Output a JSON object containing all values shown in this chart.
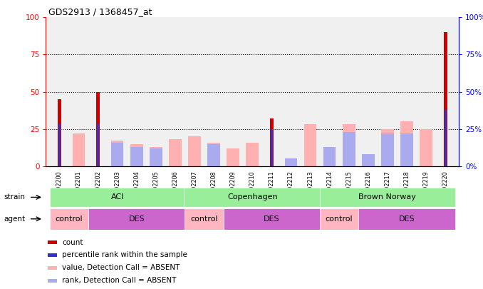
{
  "title": "GDS2913 / 1368457_at",
  "samples": [
    "GSM92200",
    "GSM92201",
    "GSM92202",
    "GSM92203",
    "GSM92204",
    "GSM92205",
    "GSM92206",
    "GSM92207",
    "GSM92208",
    "GSM92209",
    "GSM92210",
    "GSM92211",
    "GSM92212",
    "GSM92213",
    "GSM92214",
    "GSM92215",
    "GSM92216",
    "GSM92217",
    "GSM92218",
    "GSM92219",
    "GSM92220"
  ],
  "count_values": [
    45,
    0,
    50,
    0,
    0,
    0,
    0,
    0,
    0,
    0,
    0,
    32,
    0,
    0,
    0,
    0,
    0,
    0,
    0,
    0,
    90
  ],
  "rank_values": [
    28,
    0,
    28,
    0,
    0,
    0,
    0,
    0,
    0,
    0,
    0,
    25,
    0,
    0,
    0,
    0,
    0,
    0,
    0,
    0,
    38
  ],
  "value_absent": [
    0,
    22,
    0,
    17,
    15,
    13,
    18,
    20,
    16,
    12,
    16,
    0,
    2,
    28,
    13,
    28,
    0,
    25,
    30,
    25,
    0
  ],
  "rank_absent": [
    0,
    0,
    0,
    16,
    13,
    12,
    0,
    0,
    15,
    0,
    0,
    0,
    5,
    0,
    13,
    23,
    8,
    22,
    22,
    0,
    0
  ],
  "strain_groups": [
    {
      "label": "ACI",
      "start": 0,
      "end": 6,
      "color": "#99EE99"
    },
    {
      "label": "Copenhagen",
      "start": 7,
      "end": 13,
      "color": "#99EE99"
    },
    {
      "label": "Brown Norway",
      "start": 14,
      "end": 20,
      "color": "#99EE99"
    }
  ],
  "agent_groups": [
    {
      "label": "control",
      "start": 0,
      "end": 1,
      "color": "#FFB6C1"
    },
    {
      "label": "DES",
      "start": 2,
      "end": 6,
      "color": "#CC66CC"
    },
    {
      "label": "control",
      "start": 7,
      "end": 8,
      "color": "#FFB6C1"
    },
    {
      "label": "DES",
      "start": 9,
      "end": 13,
      "color": "#CC66CC"
    },
    {
      "label": "control",
      "start": 14,
      "end": 15,
      "color": "#FFB6C1"
    },
    {
      "label": "DES",
      "start": 16,
      "end": 20,
      "color": "#CC66CC"
    }
  ],
  "count_color": "#CC0000",
  "rank_color": "#3333CC",
  "value_absent_color": "#FFB0B0",
  "rank_absent_color": "#AAAAEE",
  "ylim": [
    0,
    100
  ],
  "yticks": [
    0,
    25,
    50,
    75,
    100
  ],
  "bg_color": "#FFFFFF",
  "axis_bg": "#F0F0F0"
}
